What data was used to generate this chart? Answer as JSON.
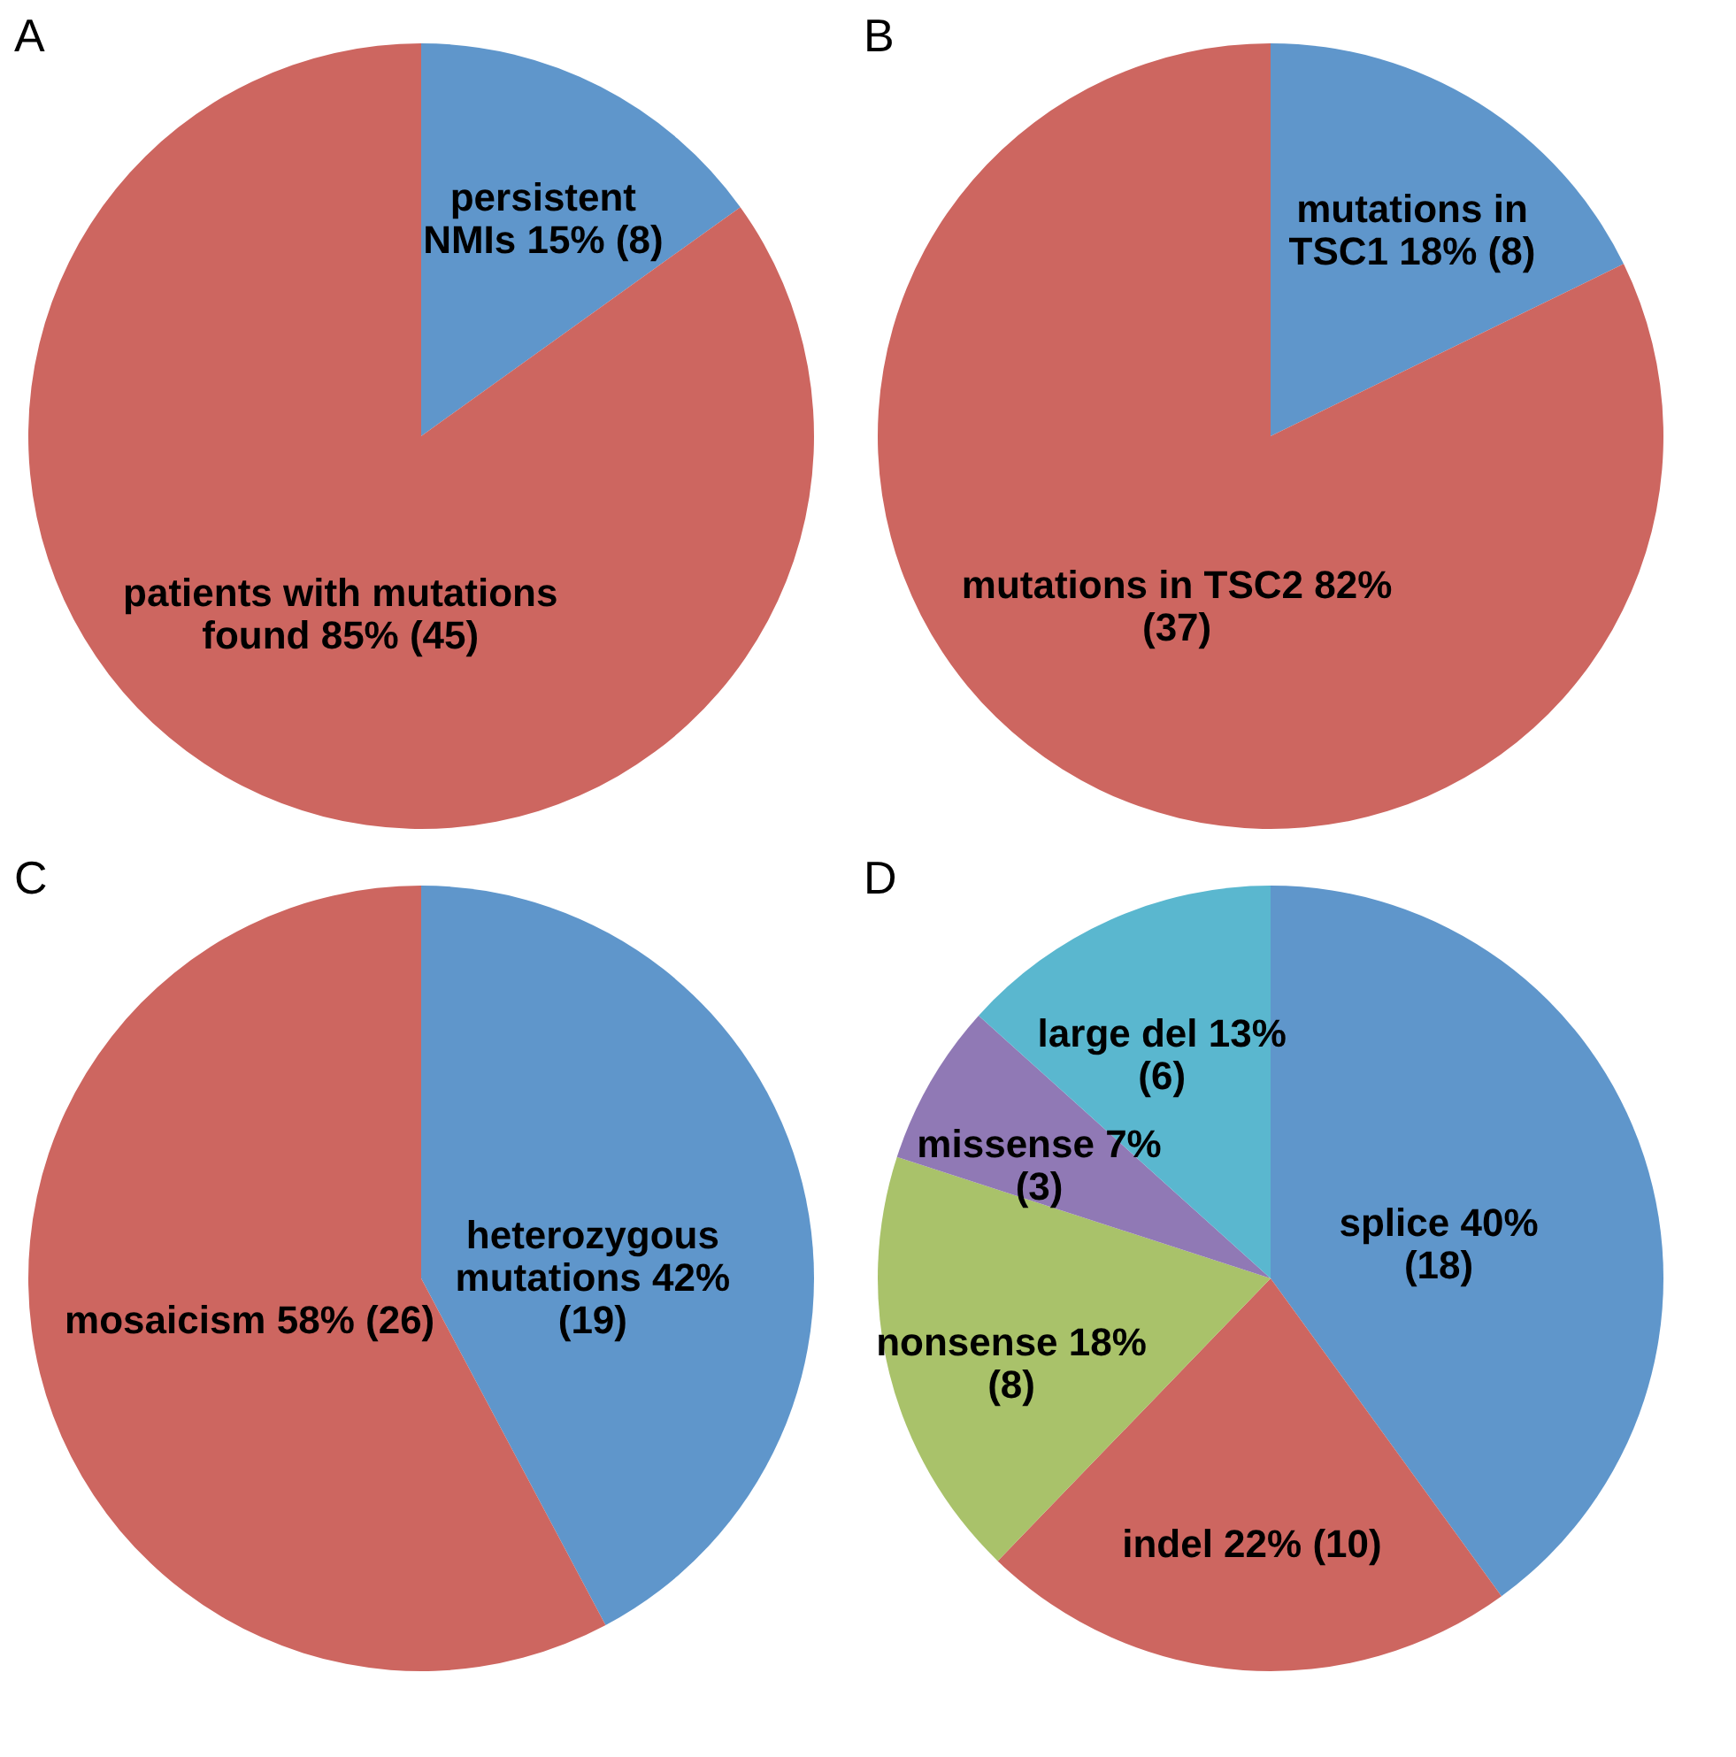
{
  "chart_data": [
    {
      "type": "pie",
      "title": "A",
      "categories": [
        "persistent NMIs",
        "patients with mutations found"
      ],
      "values": [
        8,
        45
      ],
      "value_labels": [
        "15% (8)",
        "85% (45)"
      ],
      "colors": [
        "#5f96cb",
        "#cd6660"
      ]
    },
    {
      "type": "pie",
      "title": "B",
      "categories": [
        "mutations in TSC1",
        "mutations in TSC2"
      ],
      "values": [
        8,
        37
      ],
      "value_labels": [
        "18% (8)",
        "82% (37)"
      ],
      "colors": [
        "#5f96cb",
        "#cd6660"
      ]
    },
    {
      "type": "pie",
      "title": "C",
      "categories": [
        "heterozygous mutations",
        "mosaicism"
      ],
      "values": [
        19,
        26
      ],
      "value_labels": [
        "42% (19)",
        "58% (26)"
      ],
      "colors": [
        "#5f96cb",
        "#cd6660"
      ]
    },
    {
      "type": "pie",
      "title": "D",
      "categories": [
        "splice",
        "indel",
        "nonsense",
        "missense",
        "large del"
      ],
      "values": [
        18,
        10,
        8,
        3,
        6
      ],
      "value_labels": [
        "40% (18)",
        "22% (10)",
        "18% (8)",
        "7% (3)",
        "13% (6)"
      ],
      "colors": [
        "#5f96cb",
        "#cd6660",
        "#a9c26a",
        "#9079b5",
        "#5ab7cf"
      ]
    }
  ]
}
